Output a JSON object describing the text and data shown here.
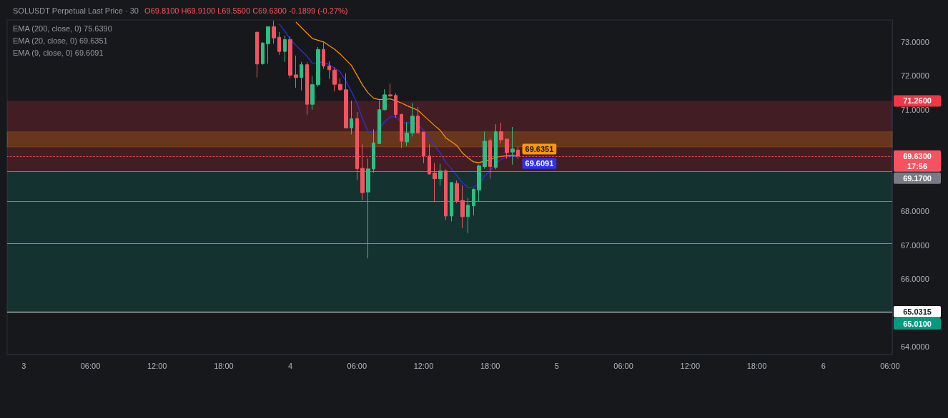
{
  "chart_data": {
    "type": "candlestick",
    "title": "SOLUSDT Perpetual Last Price · 30",
    "subtitle": "O69.8100 H69.9100 L69.5500 C69.6300 -0.1899 (-0.27%)",
    "annotations": [
      "EMA (200, close, 0) 75.6390",
      "EMA (20, close, 0) 69.6351",
      "EMA (9, close, 0) 69.6091"
    ],
    "xlim": [
      "--02-02T22:30",
      "--02-06T06:12"
    ],
    "xticks": [
      {
        "value": "--02-03T00:00",
        "label": "3"
      },
      {
        "value": "--02-03T06:00",
        "label": "06:00"
      },
      {
        "value": "--02-03T12:00",
        "label": "12:00"
      },
      {
        "value": "--02-03T18:00",
        "label": "18:00"
      },
      {
        "value": "--02-04T00:00",
        "label": "4"
      },
      {
        "value": "--02-04T06:00",
        "label": "06:00"
      },
      {
        "value": "--02-04T12:00",
        "label": "12:00"
      },
      {
        "value": "--02-04T18:00",
        "label": "18:00"
      },
      {
        "value": "--02-05T00:00",
        "label": "5"
      },
      {
        "value": "--02-05T06:00",
        "label": "06:00"
      },
      {
        "value": "--02-05T12:00",
        "label": "12:00"
      },
      {
        "value": "--02-05T18:00",
        "label": "18:00"
      },
      {
        "value": "--02-06T00:00",
        "label": "6"
      },
      {
        "value": "--02-06T06:00",
        "label": "06:00"
      }
    ],
    "ylim": [
      63.77,
      73.65
    ],
    "yticks": [
      {
        "value": 64,
        "label": "64.0000"
      },
      {
        "value": 66,
        "label": "66.0000"
      },
      {
        "value": 67,
        "label": "67.0000"
      },
      {
        "value": 68,
        "label": "68.0000"
      },
      {
        "value": 71,
        "label": "71.0000"
      },
      {
        "value": 72,
        "label": "72.0000"
      },
      {
        "value": 73,
        "label": "73.0000"
      }
    ],
    "grid": false,
    "bands": [
      {
        "axis": "y",
        "from": 69.17,
        "to": 71.26,
        "label": "71.2600",
        "color": "#f23645"
      },
      {
        "axis": "y",
        "from": 69.17,
        "to": 65.01,
        "label": "65.0100",
        "color": "#089981"
      },
      {
        "axis": "y",
        "from": 69.9,
        "to": 70.35,
        "color": "#ff9800"
      }
    ],
    "ref_lines": [
      {
        "axis": "y",
        "value": 69.63,
        "label": "69.6300\n17:56",
        "color": "#f7525f",
        "line_style": "dotted"
      },
      {
        "axis": "y",
        "value": 65.0315,
        "label": "65.0315",
        "color": "#ffffff",
        "line_style": "solid"
      },
      {
        "axis": "y",
        "value": 69.17,
        "label": "69.1700",
        "color": "#787b86",
        "line_style": "solid"
      },
      {
        "axis": "y",
        "value": 68.3,
        "color": "#6b8f78",
        "line_style": "solid"
      },
      {
        "axis": "y",
        "value": 67.06,
        "color": "#4caf50",
        "line_style": "solid"
      }
    ],
    "series": [
      {
        "x": [
          "--02-03T21:00",
          "--02-03T21:30",
          "--02-03T22:00",
          "--02-03T22:30",
          "--02-03T23:00",
          "--02-03T23:30",
          "--02-04T00:00",
          "--02-04T00:30",
          "--02-04T01:00",
          "--02-04T01:30",
          "--02-04T02:00",
          "--02-04T02:30",
          "--02-04T03:00",
          "--02-04T03:30",
          "--02-04T04:00",
          "--02-04T04:30",
          "--02-04T05:00",
          "--02-04T05:30",
          "--02-04T06:00",
          "--02-04T06:30",
          "--02-04T07:00",
          "--02-04T07:30",
          "--02-04T08:00",
          "--02-04T08:30",
          "--02-04T09:00",
          "--02-04T09:30",
          "--02-04T10:00",
          "--02-04T10:30",
          "--02-04T11:00",
          "--02-04T11:30",
          "--02-04T12:00",
          "--02-04T12:30",
          "--02-04T13:00",
          "--02-04T13:30",
          "--02-04T14:00",
          "--02-04T14:30",
          "--02-04T15:00",
          "--02-04T15:30",
          "--02-04T16:00",
          "--02-04T16:30",
          "--02-04T17:00",
          "--02-04T17:30",
          "--02-04T18:00",
          "--02-04T18:30",
          "--02-04T19:00",
          "--02-04T19:30",
          "--02-04T20:00",
          "--02-04T20:30"
        ],
        "ohlc": [
          [
            73.29,
            73.29,
            71.95,
            72.35
          ],
          [
            72.36,
            72.99,
            72.33,
            72.97
          ],
          [
            72.95,
            73.46,
            72.36,
            73.45
          ],
          [
            73.45,
            73.63,
            72.95,
            73.12
          ],
          [
            73.14,
            73.29,
            72.62,
            72.72
          ],
          [
            72.72,
            73.19,
            72.41,
            73.07
          ],
          [
            73.07,
            73.16,
            71.93,
            72.02
          ],
          [
            72.03,
            72.6,
            71.65,
            71.95
          ],
          [
            71.95,
            72.41,
            71.57,
            72.33
          ],
          [
            72.33,
            72.41,
            70.86,
            71.16
          ],
          [
            71.16,
            71.99,
            71.0,
            71.74
          ],
          [
            71.74,
            72.85,
            71.68,
            72.78
          ],
          [
            72.78,
            72.99,
            72.21,
            72.29
          ],
          [
            72.29,
            72.43,
            71.91,
            72.18
          ],
          [
            72.17,
            72.25,
            71.54,
            71.75
          ],
          [
            71.75,
            71.93,
            71.55,
            71.59
          ],
          [
            71.59,
            72.07,
            70.45,
            70.46
          ],
          [
            70.46,
            71.27,
            70.27,
            70.73
          ],
          [
            70.74,
            70.93,
            68.92,
            69.26
          ],
          [
            69.27,
            69.98,
            68.33,
            68.55
          ],
          [
            68.57,
            69.56,
            66.61,
            69.25
          ],
          [
            69.25,
            70.42,
            69.14,
            70.02
          ],
          [
            70.0,
            71.27,
            70.0,
            71.0
          ],
          [
            71.0,
            71.6,
            70.98,
            71.44
          ],
          [
            71.44,
            71.77,
            71.37,
            71.41
          ],
          [
            71.42,
            71.48,
            70.76,
            70.86
          ],
          [
            70.86,
            70.88,
            69.87,
            70.07
          ],
          [
            70.05,
            70.63,
            69.93,
            70.31
          ],
          [
            70.31,
            71.2,
            70.21,
            70.81
          ],
          [
            70.81,
            71.08,
            70.3,
            70.31
          ],
          [
            70.34,
            70.34,
            69.42,
            69.63
          ],
          [
            69.63,
            69.98,
            69.09,
            69.1
          ],
          [
            69.13,
            69.42,
            68.27,
            68.96
          ],
          [
            68.96,
            69.4,
            68.76,
            69.19
          ],
          [
            69.19,
            69.24,
            67.74,
            67.86
          ],
          [
            67.86,
            68.85,
            67.7,
            68.85
          ],
          [
            68.82,
            68.91,
            68.24,
            68.31
          ],
          [
            68.32,
            68.77,
            67.5,
            67.84
          ],
          [
            67.84,
            68.4,
            67.35,
            68.18
          ],
          [
            68.16,
            68.67,
            67.88,
            68.65
          ],
          [
            68.63,
            69.38,
            68.3,
            69.34
          ],
          [
            69.32,
            70.35,
            69.26,
            70.07
          ],
          [
            70.09,
            70.15,
            68.97,
            69.32
          ],
          [
            69.3,
            70.57,
            69.24,
            70.35
          ],
          [
            70.35,
            70.61,
            70.0,
            70.11
          ],
          [
            70.13,
            70.14,
            69.55,
            69.73
          ],
          [
            69.75,
            70.49,
            69.38,
            69.84
          ],
          [
            69.81,
            69.91,
            69.55,
            69.63
          ]
        ],
        "colors": [
          "#f7525f",
          "#2ebd85",
          "#2ebd85",
          "#f7525f",
          "#f7525f",
          "#2ebd85",
          "#f7525f",
          "#f7525f",
          "#2ebd85",
          "#f7525f",
          "#2ebd85",
          "#2ebd85",
          "#f7525f",
          "#f7525f",
          "#f7525f",
          "#f7525f",
          "#f7525f",
          "#2ebd85",
          "#f7525f",
          "#f7525f",
          "#2ebd85",
          "#2ebd85",
          "#2ebd85",
          "#2ebd85",
          "#f7525f",
          "#f7525f",
          "#f7525f",
          "#2ebd85",
          "#2ebd85",
          "#f7525f",
          "#f7525f",
          "#f7525f",
          "#f7525f",
          "#2ebd85",
          "#f7525f",
          "#2ebd85",
          "#f7525f",
          "#f7525f",
          "#2ebd85",
          "#2ebd85",
          "#2ebd85",
          "#2ebd85",
          "#f7525f",
          "#2ebd85",
          "#f7525f",
          "#f7525f",
          "#2ebd85",
          "#f7525f"
        ]
      },
      {
        "type": "line",
        "color": "#ff9800",
        "x": [
          "--02-04T00:30",
          "--02-04T01:30",
          "--02-04T02:00",
          "--02-04T03:00",
          "--02-04T04:00",
          "--02-04T04:30",
          "--02-04T05:30",
          "--02-04T06:30",
          "--02-04T07:00",
          "--02-04T07:30",
          "--02-04T08:00",
          "--02-04T09:00",
          "--02-04T10:00",
          "--02-04T10:30",
          "--02-04T11:30",
          "--02-04T12:00",
          "--02-04T13:00",
          "--02-04T13:30",
          "--02-04T14:00",
          "--02-04T15:00",
          "--02-04T15:30",
          "--02-04T16:00",
          "--02-04T16:30",
          "--02-04T17:00",
          "--02-04T17:30",
          "--02-04T18:00",
          "--02-04T18:30",
          "--02-04T19:30",
          "--02-04T20:00",
          "--02-04T20:30"
        ],
        "values": [
          73.59,
          73.26,
          73.1,
          73.0,
          72.78,
          72.64,
          72.31,
          71.73,
          71.5,
          71.34,
          71.3,
          71.32,
          71.2,
          71.12,
          70.98,
          70.83,
          70.53,
          70.39,
          70.17,
          69.94,
          69.72,
          69.58,
          69.46,
          69.44,
          69.48,
          69.52,
          69.6,
          69.64,
          69.66,
          69.6351
        ],
        "value_labels": [
          null,
          null,
          null,
          null,
          null,
          null,
          null,
          null,
          null,
          null,
          null,
          null,
          null,
          null,
          null,
          null,
          null,
          null,
          null,
          null,
          null,
          null,
          null,
          null,
          null,
          null,
          null,
          null,
          null,
          "69.6351"
        ]
      },
      {
        "type": "line",
        "color": "#2f2ff0",
        "x": [
          "--02-03T23:00",
          "--02-03T23:30",
          "--02-04T00:00",
          "--02-04T00:30",
          "--02-04T01:00",
          "--02-04T01:30",
          "--02-04T02:00",
          "--02-04T02:30",
          "--02-04T03:00",
          "--02-04T03:30",
          "--02-04T04:00",
          "--02-04T04:30",
          "--02-04T05:00",
          "--02-04T05:30",
          "--02-04T06:00",
          "--02-04T06:30",
          "--02-04T07:00",
          "--02-04T07:30",
          "--02-04T08:00",
          "--02-04T08:30",
          "--02-04T09:00",
          "--02-04T09:30",
          "--02-04T10:00",
          "--02-04T10:30",
          "--02-04T11:00",
          "--02-04T11:30",
          "--02-04T12:00",
          "--02-04T12:30",
          "--02-04T13:00",
          "--02-04T13:30",
          "--02-04T14:00",
          "--02-04T14:30",
          "--02-04T15:00",
          "--02-04T15:30",
          "--02-04T16:00",
          "--02-04T16:30",
          "--02-04T17:00",
          "--02-04T17:30",
          "--02-04T18:00",
          "--02-04T18:30",
          "--02-04T19:00",
          "--02-04T19:30",
          "--02-04T20:00",
          "--02-04T20:30"
        ],
        "values": [
          73.53,
          73.32,
          73.08,
          72.9,
          72.74,
          72.58,
          72.37,
          72.39,
          72.41,
          72.33,
          72.23,
          72.11,
          71.85,
          71.54,
          71.2,
          70.73,
          70.35,
          70.29,
          70.43,
          70.65,
          70.79,
          70.79,
          70.63,
          70.61,
          70.63,
          70.55,
          70.39,
          70.17,
          69.94,
          69.72,
          69.44,
          69.26,
          69.05,
          68.85,
          68.71,
          68.71,
          68.81,
          69.05,
          69.19,
          69.4,
          69.54,
          69.6,
          69.63,
          69.6091
        ],
        "value_labels": [
          null,
          null,
          null,
          null,
          null,
          null,
          null,
          null,
          null,
          null,
          null,
          null,
          null,
          null,
          null,
          null,
          null,
          null,
          null,
          null,
          null,
          null,
          null,
          null,
          null,
          null,
          null,
          null,
          null,
          null,
          null,
          null,
          null,
          null,
          null,
          null,
          null,
          null,
          null,
          null,
          null,
          null,
          null,
          "69.6091"
        ]
      }
    ]
  }
}
